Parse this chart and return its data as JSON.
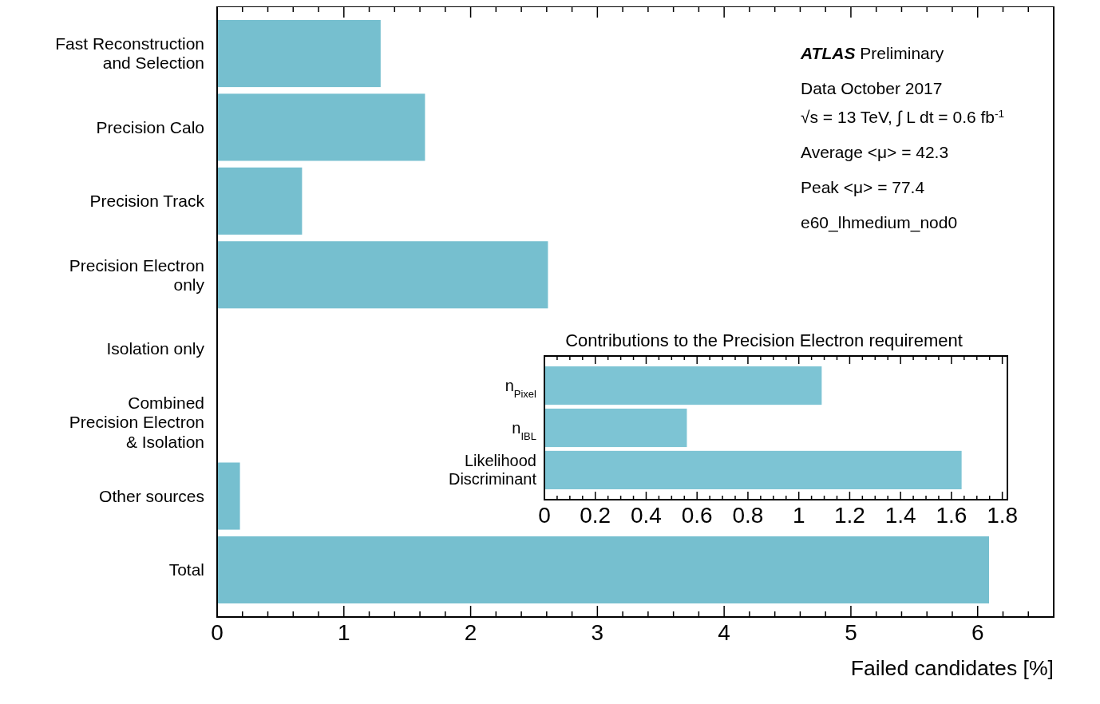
{
  "chart_data": [
    {
      "type": "bar",
      "orientation": "horizontal",
      "xlabel": "Failed candidates [%]",
      "categories": [
        "Fast Reconstruction\nand Selection",
        "Precision Calo",
        "Precision Track",
        "Precision Electron\nonly",
        "Isolation only",
        "Combined\nPrecision Electron\n& Isolation",
        "Other sources",
        "Total"
      ],
      "values": [
        1.29,
        1.64,
        0.67,
        2.61,
        0,
        0,
        0.18,
        6.09
      ],
      "color": "#76bfcf",
      "xlim": [
        0,
        6.6
      ],
      "xticks": [
        0,
        {
          "value": 0.2,
          "label": null
        },
        {
          "value": 0.4,
          "label": null
        },
        {
          "value": 0.6,
          "label": null
        },
        {
          "value": 0.8,
          "label": null
        },
        1,
        {
          "value": 1.2,
          "label": null
        },
        {
          "value": 1.4,
          "label": null
        },
        {
          "value": 1.6,
          "label": null
        },
        {
          "value": 1.8,
          "label": null
        },
        2,
        {
          "value": 2.2,
          "label": null
        },
        {
          "value": 2.4,
          "label": null
        },
        {
          "value": 2.6,
          "label": null
        },
        {
          "value": 2.8,
          "label": null
        },
        3,
        {
          "value": 3.2,
          "label": null
        },
        {
          "value": 3.4,
          "label": null
        },
        {
          "value": 3.6,
          "label": null
        },
        {
          "value": 3.8,
          "label": null
        },
        4,
        {
          "value": 4.2,
          "label": null
        },
        {
          "value": 4.4,
          "label": null
        },
        {
          "value": 4.6,
          "label": null
        },
        {
          "value": 4.8,
          "label": null
        },
        5,
        {
          "value": 5.2,
          "label": null
        },
        {
          "value": 5.4,
          "label": null
        },
        {
          "value": 5.6,
          "label": null
        },
        {
          "value": 5.8,
          "label": null
        },
        6,
        {
          "value": 6.2,
          "label": null
        },
        {
          "value": 6.4,
          "label": null
        },
        {
          "value": 6.6,
          "label": null
        }
      ],
      "annotations": [
        "ATLAS Preliminary",
        "Data October 2017",
        "√s = 13 TeV, ∫ L dt = 0.6 fb$^{-1}$",
        "Average <μ> = 42.3",
        "Peak <μ> = 77.4",
        "e60_lhmedium_nod0"
      ]
    },
    {
      "type": "bar",
      "orientation": "horizontal",
      "title": "Contributions to the Precision Electron requirement",
      "categories": [
        "n$_{Pixel}$",
        "n$_{IBL}$",
        "Likelihood\nDiscriminant"
      ],
      "values": [
        1.09,
        0.56,
        1.64
      ],
      "color": "#7dc4d4",
      "xlim": [
        0,
        1.82
      ],
      "xticks": [
        0,
        {
          "value": 0.05,
          "label": null
        },
        {
          "value": 0.1,
          "label": null
        },
        {
          "value": 0.15,
          "label": null
        },
        0.2,
        {
          "value": 0.25,
          "label": null
        },
        {
          "value": 0.3,
          "label": null
        },
        {
          "value": 0.35,
          "label": null
        },
        0.4,
        {
          "value": 0.45,
          "label": null
        },
        {
          "value": 0.5,
          "label": null
        },
        {
          "value": 0.55,
          "label": null
        },
        0.6,
        {
          "value": 0.65,
          "label": null
        },
        {
          "value": 0.7,
          "label": null
        },
        {
          "value": 0.75,
          "label": null
        },
        0.8,
        {
          "value": 0.85,
          "label": null
        },
        {
          "value": 0.9,
          "label": null
        },
        {
          "value": 0.95,
          "label": null
        },
        1,
        {
          "value": 1.05,
          "label": null
        },
        {
          "value": 1.1,
          "label": null
        },
        {
          "value": 1.15,
          "label": null
        },
        1.2,
        {
          "value": 1.25,
          "label": null
        },
        {
          "value": 1.3,
          "label": null
        },
        {
          "value": 1.35,
          "label": null
        },
        1.4,
        {
          "value": 1.45,
          "label": null
        },
        {
          "value": 1.5,
          "label": null
        },
        {
          "value": 1.55,
          "label": null
        },
        1.6,
        {
          "value": 1.65,
          "label": null
        },
        {
          "value": 1.7,
          "label": null
        },
        {
          "value": 1.75,
          "label": null
        },
        1.8
      ]
    }
  ]
}
